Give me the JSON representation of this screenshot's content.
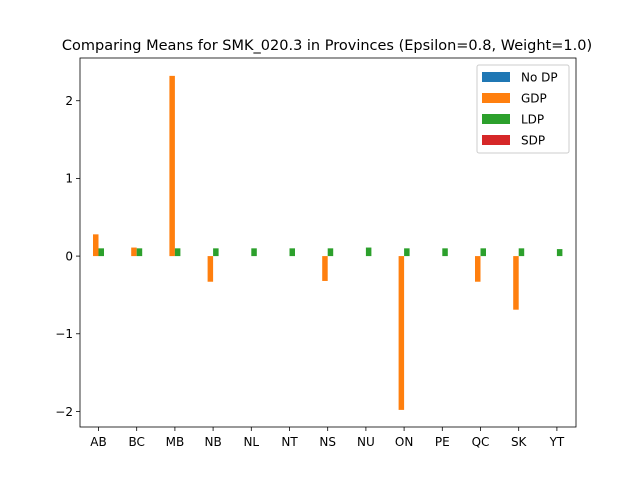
{
  "chart_data": {
    "type": "bar",
    "title": "Comparing Means for SMK_020.3 in Provinces (Epsilon=0.8, Weight=1.0)",
    "xlabel": "",
    "ylabel": "",
    "categories": [
      "AB",
      "BC",
      "MB",
      "NB",
      "NL",
      "NT",
      "NS",
      "NU",
      "ON",
      "PE",
      "QC",
      "SK",
      "YT"
    ],
    "ylim": [
      -2.2,
      2.55
    ],
    "yticks": [
      -2,
      -1,
      0,
      1,
      2
    ],
    "ytick_labels": [
      "−2",
      "−1",
      "0",
      "1",
      "2"
    ],
    "grid": false,
    "legend_position": "upper right",
    "series": [
      {
        "name": "No DP",
        "color": "#1f77b4",
        "values": [
          0,
          0,
          0,
          0,
          0,
          0,
          0,
          0,
          0,
          0,
          0,
          0,
          0
        ]
      },
      {
        "name": "GDP",
        "color": "#ff7f0e",
        "values": [
          0.28,
          0.11,
          2.32,
          -0.33,
          0,
          0,
          -0.32,
          0,
          -1.98,
          0,
          -0.33,
          -0.69,
          0
        ]
      },
      {
        "name": "LDP",
        "color": "#2ca02c",
        "values": [
          0.1,
          0.1,
          0.1,
          0.1,
          0.1,
          0.1,
          0.1,
          0.11,
          0.1,
          0.1,
          0.1,
          0.1,
          0.09
        ]
      },
      {
        "name": "SDP",
        "color": "#d62728",
        "values": [
          0,
          0,
          0,
          0,
          0,
          0,
          0,
          0,
          0,
          0,
          0,
          0,
          0
        ]
      }
    ]
  }
}
